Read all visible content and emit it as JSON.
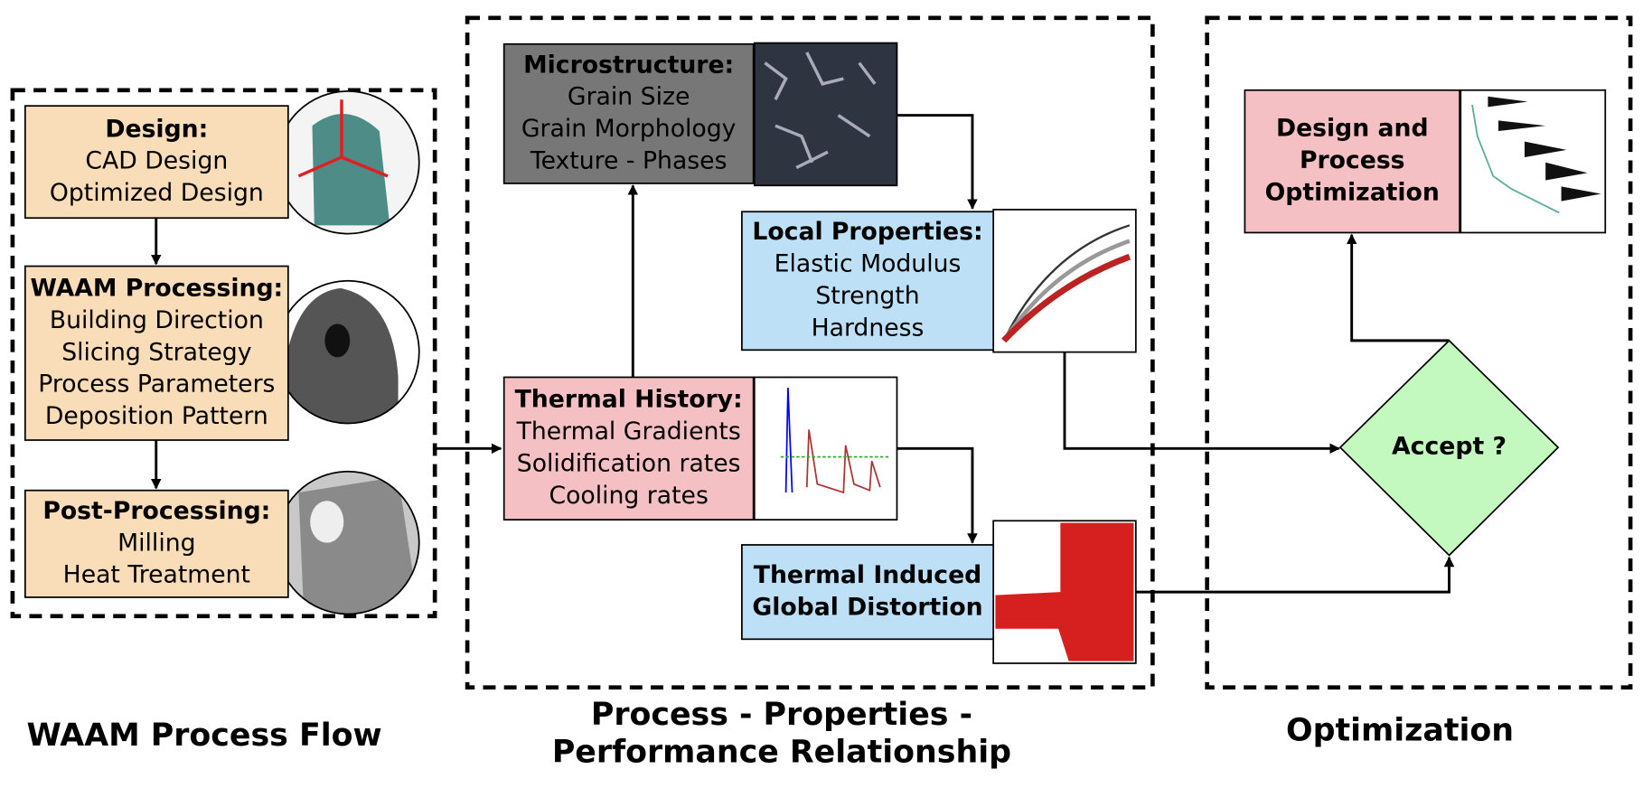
{
  "groups": [
    {
      "caption_lines": [
        "WAAM Process Flow"
      ]
    },
    {
      "caption_lines": [
        "Process - Properties -",
        "Performance Relationship"
      ]
    },
    {
      "caption_lines": [
        "Optimization"
      ]
    }
  ],
  "boxes": [
    {
      "title_lines": [
        "Design:"
      ],
      "lines": [
        "CAD Design",
        "Optimized Design"
      ]
    },
    {
      "title_lines": [
        "WAAM Processing:"
      ],
      "lines": [
        "Building Direction",
        "Slicing Strategy",
        "Process Parameters",
        "Deposition Pattern"
      ]
    },
    {
      "title_lines": [
        "Post-Processing:"
      ],
      "lines": [
        "Milling",
        "Heat Treatment"
      ]
    },
    {
      "title_lines": [
        "Microstructure:"
      ],
      "lines": [
        "Grain Size",
        "Grain Morphology",
        "Texture - Phases"
      ]
    },
    {
      "title_lines": [
        "Local Properties:"
      ],
      "lines": [
        "Elastic Modulus",
        "Strength",
        "Hardness"
      ]
    },
    {
      "title_lines": [
        "Thermal History:"
      ],
      "lines": [
        "Thermal Gradients",
        "Solidification rates",
        "Cooling rates"
      ]
    },
    {
      "title_lines": [
        "Thermal Induced",
        "Global Distortion"
      ],
      "lines": []
    },
    {
      "title_lines": [
        "Design and",
        "Process",
        "Optimization"
      ],
      "lines": []
    }
  ],
  "decision": "Accept ?"
}
